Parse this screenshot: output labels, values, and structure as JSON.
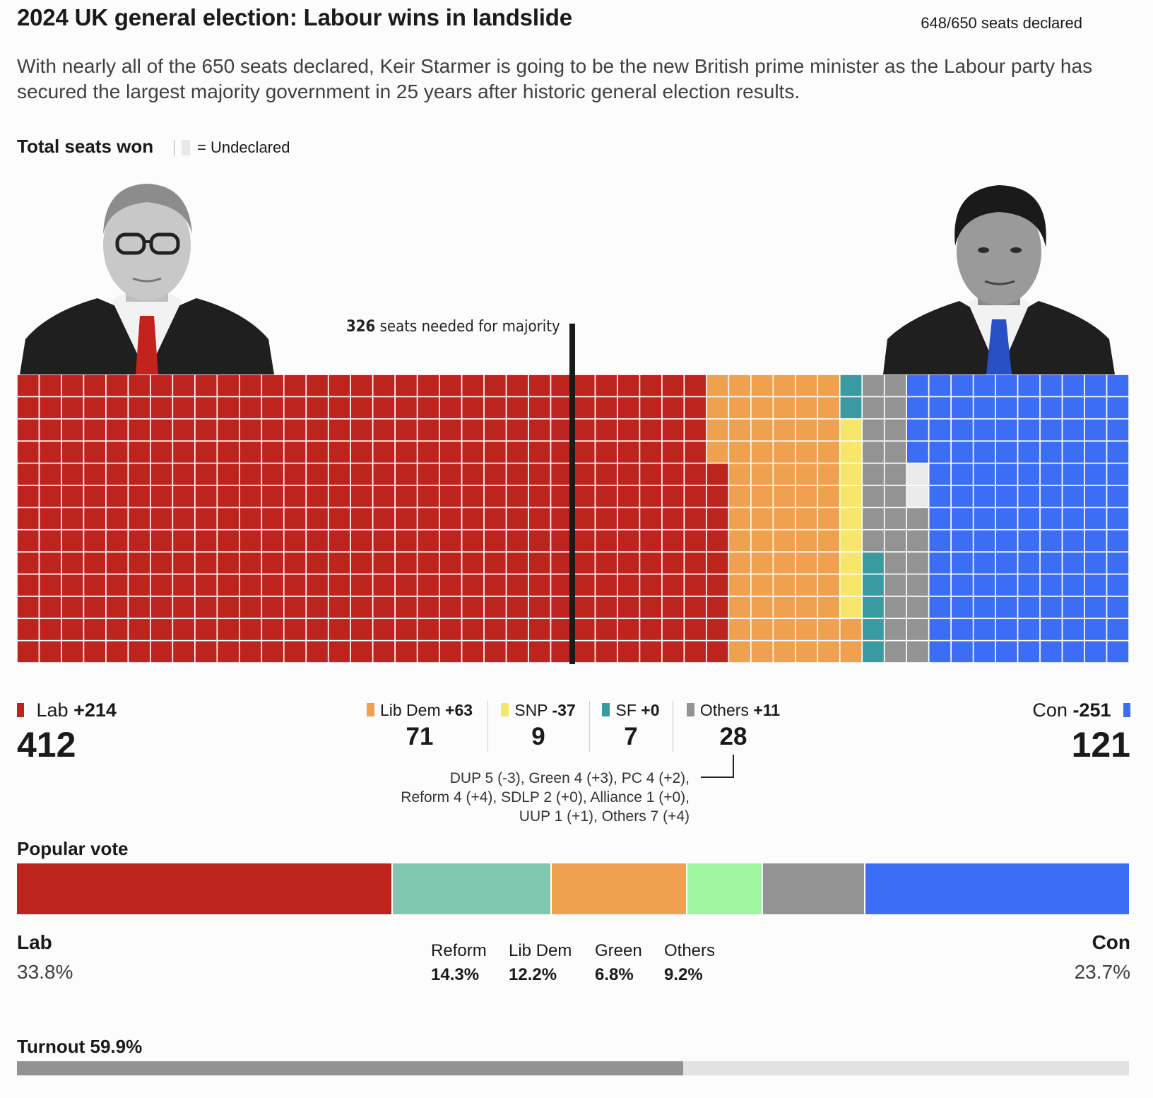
{
  "header": {
    "title": "2024 UK general election: Labour wins in landslide",
    "declared": "648/650 seats declared",
    "subtitle": "With nearly all of the 650 seats declared, Keir Starmer is going to be the new British prime minister as the Labour party has secured the largest majority government in 25 years after historic general election results."
  },
  "seats": {
    "heading": "Total seats won",
    "undeclared_key": "= Undeclared",
    "majority_number": "326",
    "majority_text": " seats needed for majority",
    "lab": {
      "name": "Lab",
      "change": "+214",
      "seats": "412"
    },
    "con": {
      "name": "Con",
      "change": "-251",
      "seats": "121"
    },
    "middle": [
      {
        "name": "Lib Dem",
        "change": "+63",
        "seats": "71",
        "color": "#f0a14f"
      },
      {
        "name": "SNP",
        "change": "-37",
        "seats": "9",
        "color": "#f7e66a"
      },
      {
        "name": "SF",
        "change": "+0",
        "seats": "7",
        "color": "#3a9aa2"
      },
      {
        "name": "Others",
        "change": "+11",
        "seats": "28",
        "color": "#939393"
      }
    ],
    "others_detail": [
      "DUP 5 (-3), Green 4 (+3), PC 4 (+2),",
      "Reform 4 (+4), SDLP 2 (+0), Alliance 1 (+0),",
      "UUP 1 (+1), Others 7 (+4)"
    ]
  },
  "popular_vote": {
    "heading": "Popular vote",
    "lab": {
      "name": "Lab",
      "pct": "33.8%"
    },
    "con": {
      "name": "Con",
      "pct": "23.7%"
    },
    "middle": [
      {
        "name": "Reform",
        "pct": "14.3%"
      },
      {
        "name": "Lib Dem",
        "pct": "12.2%"
      },
      {
        "name": "Green",
        "pct": "6.8%"
      },
      {
        "name": "Others",
        "pct": "9.2%"
      }
    ]
  },
  "turnout": {
    "label": "Turnout 59.9%",
    "value": 59.9
  },
  "colors": {
    "lab": "#bd241e",
    "libdem": "#f0a14f",
    "snp": "#f7e66a",
    "sf": "#3a9aa2",
    "others": "#939393",
    "con": "#3b6ef5",
    "reform": "#80c8b0",
    "green": "#a0f5a0",
    "undeclared": "#ebebeb"
  },
  "chart_data": [
    {
      "type": "waffle",
      "title": "Total seats won",
      "total_seats": 650,
      "declared": 648,
      "majority": 326,
      "categories": [
        "Lab",
        "Lib Dem",
        "SNP",
        "SF",
        "Others",
        "Undeclared",
        "Con"
      ],
      "values": [
        412,
        71,
        9,
        7,
        28,
        2,
        121
      ],
      "changes": [
        "+214",
        "+63",
        "-37",
        "+0",
        "+11",
        "",
        "-251"
      ]
    },
    {
      "type": "bar",
      "orientation": "stacked-horizontal",
      "title": "Popular vote",
      "categories": [
        "Lab",
        "Reform",
        "Lib Dem",
        "Green",
        "Others",
        "Con"
      ],
      "values": [
        33.8,
        14.3,
        12.2,
        6.8,
        9.2,
        23.7
      ],
      "unit": "%"
    },
    {
      "type": "bar",
      "title": "Turnout",
      "categories": [
        "Turnout"
      ],
      "values": [
        59.9
      ],
      "unit": "%"
    }
  ]
}
